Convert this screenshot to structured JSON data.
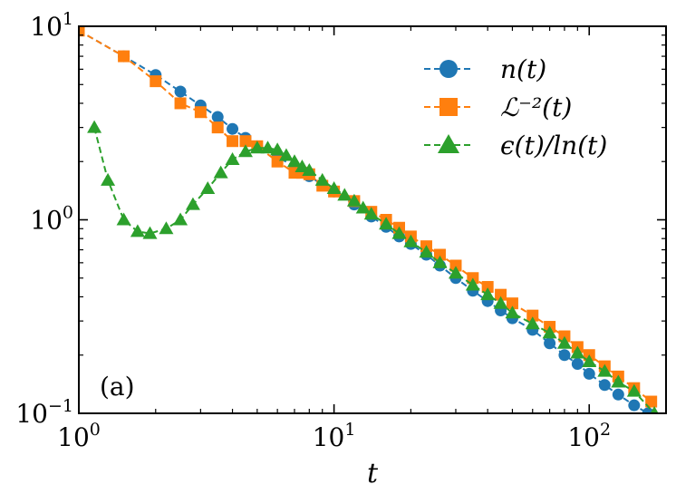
{
  "chart_data": {
    "type": "line",
    "scale": "log-log",
    "xlabel": "t",
    "ylabel": "",
    "xlim": [
      1,
      200
    ],
    "ylim": [
      0.1,
      10
    ],
    "x_ticks": [
      {
        "value": 1,
        "base": "10",
        "exp": "0"
      },
      {
        "value": 10,
        "base": "10",
        "exp": "1"
      },
      {
        "value": 100,
        "base": "10",
        "exp": "2"
      }
    ],
    "y_ticks": [
      {
        "value": 0.1,
        "base": "10",
        "exp": "−1"
      },
      {
        "value": 1,
        "base": "10",
        "exp": "0"
      },
      {
        "value": 10,
        "base": "10",
        "exp": "1"
      }
    ],
    "annotation": "(a)",
    "legend_position": "top-right",
    "series": [
      {
        "name": "n(t)",
        "color": "#1f77b4",
        "marker": "circle",
        "line": "dashed",
        "x": [
          1.0,
          1.5,
          2.0,
          2.5,
          3.0,
          3.5,
          4.0,
          4.5,
          5.0,
          6.0,
          7.0,
          8.0,
          9.0,
          10.0,
          12.0,
          14.0,
          16.0,
          18.0,
          20.0,
          23.0,
          26.0,
          30.0,
          35.0,
          40.0,
          45.0,
          50.0,
          60.0,
          70.0,
          80.0,
          90.0,
          100.0,
          115.0,
          130.0,
          150.0,
          170.0
        ],
        "y": [
          9.5,
          7.0,
          5.6,
          4.6,
          3.9,
          3.4,
          2.95,
          2.65,
          2.4,
          2.12,
          1.88,
          1.68,
          1.52,
          1.4,
          1.2,
          1.04,
          0.92,
          0.82,
          0.75,
          0.66,
          0.58,
          0.5,
          0.43,
          0.38,
          0.34,
          0.31,
          0.27,
          0.23,
          0.2,
          0.18,
          0.16,
          0.14,
          0.125,
          0.11,
          0.1
        ]
      },
      {
        "name": "ℒ⁻²(t)",
        "color": "#ff7f0e",
        "marker": "square",
        "line": "dashed",
        "x": [
          1.0,
          1.5,
          2.0,
          2.5,
          3.0,
          3.5,
          4.0,
          4.5,
          5.0,
          6.0,
          7.0,
          7.5,
          8.0,
          9.0,
          10.0,
          12.0,
          14.0,
          16.0,
          18.0,
          20.0,
          23.0,
          26.0,
          30.0,
          35.0,
          40.0,
          45.0,
          50.0,
          60.0,
          70.0,
          80.0,
          90.0,
          100.0,
          115.0,
          130.0,
          150.0,
          175.0
        ],
        "y": [
          9.5,
          7.0,
          5.2,
          4.0,
          3.6,
          3.0,
          2.55,
          2.55,
          2.4,
          2.0,
          1.75,
          1.75,
          1.72,
          1.5,
          1.4,
          1.25,
          1.1,
          1.0,
          0.91,
          0.82,
          0.73,
          0.66,
          0.58,
          0.5,
          0.45,
          0.41,
          0.37,
          0.32,
          0.28,
          0.25,
          0.22,
          0.2,
          0.175,
          0.155,
          0.135,
          0.115
        ]
      },
      {
        "name": "ϵ(t)/ln(t)",
        "color": "#2ca02c",
        "marker": "triangle",
        "line": "dashed",
        "x": [
          1.15,
          1.3,
          1.5,
          1.7,
          1.9,
          2.2,
          2.5,
          2.8,
          3.2,
          3.6,
          4.0,
          4.5,
          5.0,
          5.5,
          6.0,
          6.5,
          7.0,
          7.5,
          8.0,
          9.0,
          10.0,
          11.0,
          12.0,
          13.0,
          14.0,
          16.0,
          18.0,
          20.0,
          23.0,
          26.0,
          30.0,
          35.0,
          40.0,
          45.0,
          50.0,
          60.0,
          70.0,
          80.0,
          90.0,
          100.0,
          115.0,
          130.0,
          150.0,
          180.0
        ],
        "y": [
          3.0,
          1.6,
          1.0,
          0.87,
          0.85,
          0.9,
          1.0,
          1.2,
          1.45,
          1.75,
          2.05,
          2.25,
          2.35,
          2.35,
          2.3,
          2.15,
          2.0,
          1.88,
          1.8,
          1.6,
          1.45,
          1.34,
          1.25,
          1.15,
          1.07,
          0.95,
          0.85,
          0.77,
          0.68,
          0.6,
          0.53,
          0.46,
          0.41,
          0.37,
          0.33,
          0.29,
          0.26,
          0.23,
          0.205,
          0.185,
          0.165,
          0.145,
          0.13,
          0.1
        ]
      }
    ]
  }
}
